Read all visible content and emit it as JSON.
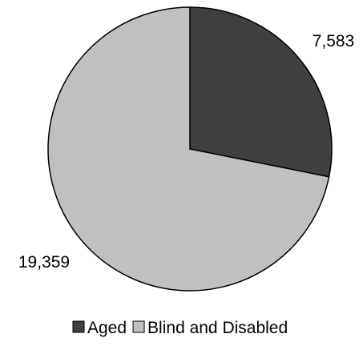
{
  "chart_data": {
    "type": "pie",
    "slices": [
      {
        "name": "Aged",
        "value": 7583,
        "label": "7,583",
        "color": "#404040"
      },
      {
        "name": "Blind and Disabled",
        "value": 19359,
        "label": "19,359",
        "color": "#c0c0c0"
      }
    ],
    "legend_position": "bottom",
    "start_angle": "12 o'clock",
    "direction": "clockwise"
  }
}
